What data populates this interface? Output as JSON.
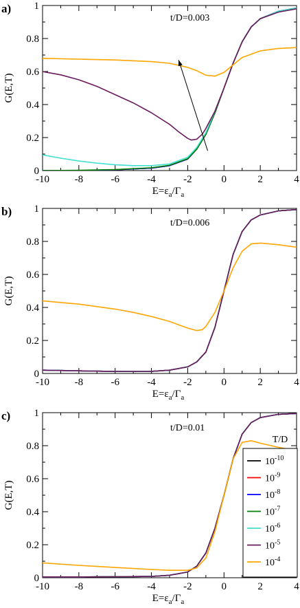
{
  "figure": {
    "legend": {
      "title": "T/D",
      "entries": [
        {
          "base": "10",
          "exp": "-10",
          "color": "#000000"
        },
        {
          "base": "10",
          "exp": "-9",
          "color": "#ff0000"
        },
        {
          "base": "10",
          "exp": "-8",
          "color": "#0000ff"
        },
        {
          "base": "10",
          "exp": "-7",
          "color": "#008000"
        },
        {
          "base": "10",
          "exp": "-6",
          "color": "#40e0d0"
        },
        {
          "base": "10",
          "exp": "-5",
          "color": "#6b1a5e"
        },
        {
          "base": "10",
          "exp": "-4",
          "color": "#ffa500"
        }
      ]
    }
  },
  "chart_data": [
    {
      "type": "line",
      "panel_label": "a)",
      "annotation": "t/D=0.003",
      "xlabel_main": "E=ε",
      "xlabel_sub1": "a",
      "xlabel_mid": "/Γ",
      "xlabel_sub2": "a",
      "ylabel": "G(E,T)",
      "xlim": [
        -10,
        4
      ],
      "ylim": [
        0,
        1
      ],
      "xticks": [
        "-10",
        "-8",
        "-6",
        "-4",
        "-2",
        "0",
        "2",
        "4"
      ],
      "yticks": [
        "0",
        "0.2",
        "0.4",
        "0.6",
        "0.8",
        "1"
      ],
      "grid": false,
      "arrow": {
        "from": [
          -0.9,
          0.12
        ],
        "to": [
          -2.5,
          0.67
        ]
      },
      "series": [
        {
          "name": "10^-10",
          "color": "#000000",
          "x": [
            -10,
            -8,
            -6,
            -4,
            -3,
            -2,
            -1.5,
            -1,
            -0.5,
            0,
            0.5,
            1,
            1.5,
            2,
            3,
            4
          ],
          "y": [
            0.0,
            0.0,
            0.005,
            0.015,
            0.03,
            0.07,
            0.13,
            0.22,
            0.35,
            0.5,
            0.65,
            0.78,
            0.87,
            0.92,
            0.965,
            0.985
          ]
        },
        {
          "name": "10^-9",
          "color": "#ff0000",
          "x": [
            -10,
            -8,
            -6,
            -4,
            -3,
            -2,
            -1.5,
            -1,
            -0.5,
            0,
            0.5,
            1,
            1.5,
            2,
            3,
            4
          ],
          "y": [
            0.0,
            0.0,
            0.005,
            0.015,
            0.03,
            0.07,
            0.13,
            0.22,
            0.35,
            0.5,
            0.65,
            0.78,
            0.87,
            0.92,
            0.965,
            0.985
          ]
        },
        {
          "name": "10^-8",
          "color": "#0000ff",
          "x": [
            -10,
            -8,
            -6,
            -4,
            -3,
            -2,
            -1.5,
            -1,
            -0.5,
            0,
            0.5,
            1,
            1.5,
            2,
            3,
            4
          ],
          "y": [
            0.0,
            0.0,
            0.005,
            0.015,
            0.03,
            0.07,
            0.13,
            0.22,
            0.35,
            0.5,
            0.65,
            0.78,
            0.87,
            0.92,
            0.965,
            0.985
          ]
        },
        {
          "name": "10^-7",
          "color": "#008000",
          "x": [
            -10,
            -8,
            -6,
            -4,
            -3,
            -2,
            -1.5,
            -1,
            -0.5,
            0,
            0.5,
            1,
            1.5,
            2,
            3,
            4
          ],
          "y": [
            0.0,
            0.002,
            0.006,
            0.017,
            0.032,
            0.072,
            0.13,
            0.22,
            0.35,
            0.5,
            0.65,
            0.78,
            0.87,
            0.92,
            0.965,
            0.985
          ]
        },
        {
          "name": "10^-6",
          "color": "#40e0d0",
          "x": [
            -10,
            -9,
            -8,
            -7,
            -6,
            -5,
            -4,
            -3,
            -2,
            -1.5,
            -1,
            -0.5,
            0,
            0.5,
            1,
            1.5,
            2,
            3,
            4
          ],
          "y": [
            0.095,
            0.075,
            0.058,
            0.045,
            0.035,
            0.03,
            0.03,
            0.04,
            0.08,
            0.14,
            0.23,
            0.36,
            0.5,
            0.65,
            0.78,
            0.87,
            0.92,
            0.965,
            0.985
          ]
        },
        {
          "name": "10^-5",
          "color": "#6b1a5e",
          "x": [
            -10,
            -9,
            -8,
            -7,
            -6,
            -5,
            -4,
            -3,
            -2.5,
            -2,
            -1.8,
            -1.5,
            -1.2,
            -1,
            -0.5,
            0,
            0.5,
            1,
            1.5,
            2,
            3,
            4
          ],
          "y": [
            0.6,
            0.58,
            0.55,
            0.51,
            0.46,
            0.41,
            0.35,
            0.28,
            0.235,
            0.195,
            0.185,
            0.19,
            0.22,
            0.255,
            0.36,
            0.5,
            0.65,
            0.78,
            0.87,
            0.92,
            0.96,
            0.98
          ]
        },
        {
          "name": "10^-4",
          "color": "#ffa500",
          "x": [
            -10,
            -8,
            -6,
            -4,
            -3,
            -2,
            -1.5,
            -1,
            -0.5,
            0,
            0.5,
            1,
            2,
            3,
            4
          ],
          "y": [
            0.68,
            0.675,
            0.67,
            0.66,
            0.65,
            0.625,
            0.605,
            0.578,
            0.572,
            0.595,
            0.64,
            0.685,
            0.725,
            0.74,
            0.745
          ]
        }
      ]
    },
    {
      "type": "line",
      "panel_label": "b)",
      "annotation": "t/D=0.006",
      "xlabel_main": "E=ε",
      "xlabel_sub1": "a",
      "xlabel_mid": "/Γ",
      "xlabel_sub2": "a",
      "ylabel": "G(E,T)",
      "xlim": [
        -10,
        4
      ],
      "ylim": [
        0,
        1
      ],
      "xticks": [
        "-10",
        "-8",
        "-6",
        "-4",
        "-2",
        "0",
        "2",
        "4"
      ],
      "yticks": [
        "0",
        "0.2",
        "0.4",
        "0.6",
        "0.8",
        "1"
      ],
      "grid": false,
      "series": [
        {
          "name": "10^-10",
          "color": "#000000",
          "x": [
            -10,
            -8,
            -6,
            -4,
            -3,
            -2,
            -1.5,
            -1,
            -0.5,
            0,
            0.5,
            1,
            1.5,
            2,
            3,
            4
          ],
          "y": [
            0.02,
            0.016,
            0.012,
            0.013,
            0.02,
            0.04,
            0.07,
            0.13,
            0.28,
            0.5,
            0.72,
            0.86,
            0.93,
            0.96,
            0.985,
            0.993
          ]
        },
        {
          "name": "10^-9",
          "color": "#ff0000",
          "x": [
            -10,
            -8,
            -6,
            -4,
            -3,
            -2,
            -1.5,
            -1,
            -0.5,
            0,
            0.5,
            1,
            1.5,
            2,
            3,
            4
          ],
          "y": [
            0.02,
            0.016,
            0.012,
            0.013,
            0.02,
            0.04,
            0.07,
            0.13,
            0.28,
            0.5,
            0.72,
            0.86,
            0.93,
            0.96,
            0.985,
            0.993
          ]
        },
        {
          "name": "10^-8",
          "color": "#0000ff",
          "x": [
            -10,
            -8,
            -6,
            -4,
            -3,
            -2,
            -1.5,
            -1,
            -0.5,
            0,
            0.5,
            1,
            1.5,
            2,
            3,
            4
          ],
          "y": [
            0.02,
            0.016,
            0.012,
            0.013,
            0.02,
            0.04,
            0.07,
            0.13,
            0.28,
            0.5,
            0.72,
            0.86,
            0.93,
            0.96,
            0.985,
            0.993
          ]
        },
        {
          "name": "10^-7",
          "color": "#008000",
          "x": [
            -10,
            -8,
            -6,
            -4,
            -3,
            -2,
            -1.5,
            -1,
            -0.5,
            0,
            0.5,
            1,
            1.5,
            2,
            3,
            4
          ],
          "y": [
            0.02,
            0.016,
            0.012,
            0.013,
            0.02,
            0.04,
            0.07,
            0.13,
            0.28,
            0.5,
            0.72,
            0.86,
            0.93,
            0.96,
            0.985,
            0.993
          ]
        },
        {
          "name": "10^-6",
          "color": "#40e0d0",
          "x": [
            -10,
            -8,
            -6,
            -4,
            -3,
            -2,
            -1.5,
            -1,
            -0.5,
            0,
            0.5,
            1,
            1.5,
            2,
            3,
            4
          ],
          "y": [
            0.02,
            0.016,
            0.012,
            0.013,
            0.02,
            0.04,
            0.07,
            0.13,
            0.28,
            0.5,
            0.72,
            0.86,
            0.93,
            0.96,
            0.985,
            0.993
          ]
        },
        {
          "name": "10^-5",
          "color": "#6b1a5e",
          "x": [
            -10,
            -8,
            -6,
            -4,
            -3,
            -2,
            -1.5,
            -1,
            -0.5,
            0,
            0.5,
            1,
            1.5,
            2,
            3,
            4
          ],
          "y": [
            0.02,
            0.016,
            0.012,
            0.013,
            0.02,
            0.04,
            0.07,
            0.13,
            0.28,
            0.5,
            0.72,
            0.86,
            0.93,
            0.96,
            0.985,
            0.993
          ]
        },
        {
          "name": "10^-4",
          "color": "#ffa500",
          "x": [
            -10,
            -9,
            -8,
            -7,
            -6,
            -5,
            -4,
            -3,
            -2.5,
            -2,
            -1.5,
            -1.2,
            -1,
            -0.5,
            0,
            0.5,
            1,
            1.5,
            2,
            3,
            4
          ],
          "y": [
            0.44,
            0.43,
            0.42,
            0.405,
            0.39,
            0.37,
            0.345,
            0.315,
            0.295,
            0.275,
            0.26,
            0.265,
            0.285,
            0.37,
            0.5,
            0.64,
            0.74,
            0.785,
            0.79,
            0.78,
            0.765
          ]
        }
      ]
    },
    {
      "type": "line",
      "panel_label": "c)",
      "annotation": "t/D=0.01",
      "xlabel_main": "E=ε",
      "xlabel_sub1": "a",
      "xlabel_mid": "/Γ",
      "xlabel_sub2": "a",
      "ylabel": "G(E,T)",
      "xlim": [
        -10,
        4
      ],
      "ylim": [
        0,
        1
      ],
      "xticks": [
        "-10",
        "-8",
        "-6",
        "-4",
        "-2",
        "0",
        "2",
        "4"
      ],
      "yticks": [
        "0",
        "0.2",
        "0.4",
        "0.6",
        "0.8",
        "1"
      ],
      "grid": false,
      "series": [
        {
          "name": "10^-10",
          "color": "#000000",
          "x": [
            -10,
            -8,
            -6,
            -4,
            -3,
            -2,
            -1.5,
            -1,
            -0.5,
            0,
            0.5,
            1,
            1.5,
            2,
            3,
            4
          ],
          "y": [
            0.005,
            0.005,
            0.006,
            0.008,
            0.015,
            0.035,
            0.07,
            0.15,
            0.3,
            0.5,
            0.72,
            0.87,
            0.94,
            0.97,
            0.99,
            0.995
          ]
        },
        {
          "name": "10^-9",
          "color": "#ff0000",
          "x": [
            -10,
            -8,
            -6,
            -4,
            -3,
            -2,
            -1.5,
            -1,
            -0.5,
            0,
            0.5,
            1,
            1.5,
            2,
            3,
            4
          ],
          "y": [
            0.005,
            0.005,
            0.006,
            0.008,
            0.015,
            0.035,
            0.07,
            0.15,
            0.3,
            0.5,
            0.72,
            0.87,
            0.94,
            0.97,
            0.99,
            0.995
          ]
        },
        {
          "name": "10^-8",
          "color": "#0000ff",
          "x": [
            -10,
            -8,
            -6,
            -4,
            -3,
            -2,
            -1.5,
            -1,
            -0.5,
            0,
            0.5,
            1,
            1.5,
            2,
            3,
            4
          ],
          "y": [
            0.005,
            0.005,
            0.006,
            0.008,
            0.015,
            0.035,
            0.07,
            0.15,
            0.3,
            0.5,
            0.72,
            0.87,
            0.94,
            0.97,
            0.99,
            0.995
          ]
        },
        {
          "name": "10^-7",
          "color": "#008000",
          "x": [
            -10,
            -8,
            -6,
            -4,
            -3,
            -2,
            -1.5,
            -1,
            -0.5,
            0,
            0.5,
            1,
            1.5,
            2,
            3,
            4
          ],
          "y": [
            0.005,
            0.005,
            0.006,
            0.008,
            0.015,
            0.035,
            0.07,
            0.15,
            0.3,
            0.5,
            0.72,
            0.87,
            0.94,
            0.97,
            0.99,
            0.995
          ]
        },
        {
          "name": "10^-6",
          "color": "#40e0d0",
          "x": [
            -10,
            -8,
            -6,
            -4,
            -3,
            -2,
            -1.5,
            -1,
            -0.5,
            0,
            0.5,
            1,
            1.5,
            2,
            3,
            4
          ],
          "y": [
            0.005,
            0.005,
            0.006,
            0.008,
            0.015,
            0.035,
            0.07,
            0.15,
            0.3,
            0.5,
            0.72,
            0.87,
            0.94,
            0.97,
            0.99,
            0.995
          ]
        },
        {
          "name": "10^-5",
          "color": "#6b1a5e",
          "x": [
            -10,
            -8,
            -6,
            -4,
            -3,
            -2,
            -1.5,
            -1,
            -0.5,
            0,
            0.5,
            1,
            1.5,
            2,
            3,
            4
          ],
          "y": [
            0.005,
            0.005,
            0.006,
            0.008,
            0.015,
            0.035,
            0.07,
            0.15,
            0.3,
            0.5,
            0.72,
            0.87,
            0.94,
            0.97,
            0.99,
            0.995
          ]
        },
        {
          "name": "10^-4",
          "color": "#ffa500",
          "x": [
            -10,
            -8,
            -6,
            -4,
            -3,
            -2,
            -1.5,
            -1,
            -0.5,
            0,
            0.5,
            1,
            1.5,
            2,
            3,
            4
          ],
          "y": [
            0.09,
            0.075,
            0.062,
            0.05,
            0.045,
            0.045,
            0.06,
            0.12,
            0.28,
            0.5,
            0.72,
            0.82,
            0.83,
            0.815,
            0.79,
            0.77
          ]
        }
      ]
    }
  ]
}
